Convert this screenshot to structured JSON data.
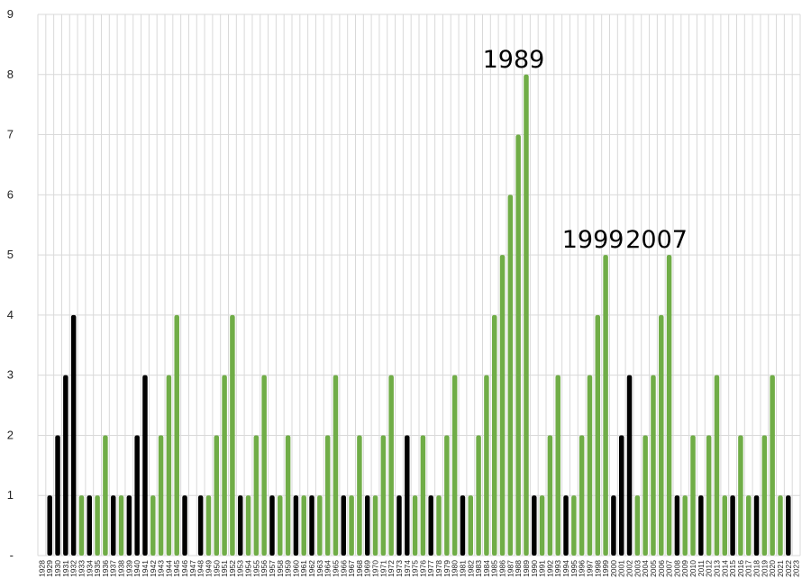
{
  "chart_data": {
    "type": "bar",
    "title": "",
    "xlabel": "",
    "ylabel": "",
    "ylim": [
      0,
      9
    ],
    "y_ticks": [
      "-",
      "1",
      "2",
      "3",
      "4",
      "5",
      "6",
      "7",
      "8",
      "9"
    ],
    "grid": true,
    "legend": "none",
    "colors": {
      "black": "#000000",
      "green": "#70AD47",
      "grid": "#d9d9d9"
    },
    "categories": [
      "1928",
      "1929",
      "1930",
      "1931",
      "1932",
      "1933",
      "1934",
      "1935",
      "1936",
      "1937",
      "1938",
      "1939",
      "1940",
      "1941",
      "1942",
      "1943",
      "1944",
      "1945",
      "1946",
      "1947",
      "1948",
      "1949",
      "1950",
      "1951",
      "1952",
      "1953",
      "1954",
      "1955",
      "1956",
      "1957",
      "1958",
      "1959",
      "1960",
      "1961",
      "1962",
      "1963",
      "1964",
      "1965",
      "1966",
      "1967",
      "1968",
      "1969",
      "1970",
      "1971",
      "1972",
      "1973",
      "1974",
      "1975",
      "1976",
      "1977",
      "1978",
      "1979",
      "1980",
      "1981",
      "1982",
      "1983",
      "1984",
      "1985",
      "1986",
      "1987",
      "1988",
      "1989",
      "1990",
      "1991",
      "1992",
      "1993",
      "1994",
      "1995",
      "1996",
      "1997",
      "1998",
      "1999",
      "2000",
      "2001",
      "2002",
      "2003",
      "2004",
      "2005",
      "2006",
      "2007",
      "2008",
      "2009",
      "2010",
      "2011",
      "2012",
      "2013",
      "2014",
      "2015",
      "2016",
      "2017",
      "2018",
      "2019",
      "2020",
      "2021",
      "2022",
      "2023"
    ],
    "values": [
      0,
      1,
      2,
      3,
      4,
      1,
      1,
      1,
      2,
      1,
      1,
      1,
      2,
      3,
      1,
      2,
      3,
      4,
      1,
      0,
      1,
      1,
      2,
      3,
      4,
      1,
      1,
      2,
      3,
      1,
      1,
      2,
      1,
      1,
      1,
      1,
      2,
      3,
      1,
      1,
      2,
      1,
      1,
      2,
      3,
      1,
      2,
      1,
      2,
      1,
      1,
      2,
      3,
      1,
      1,
      2,
      3,
      4,
      5,
      6,
      7,
      8,
      1,
      1,
      2,
      3,
      1,
      1,
      2,
      3,
      4,
      5,
      1,
      2,
      3,
      1,
      2,
      3,
      4,
      5,
      1,
      1,
      2,
      1,
      2,
      3,
      1,
      1,
      2,
      1,
      1,
      2,
      3,
      1,
      1,
      0
    ],
    "bar_colors": [
      "green",
      "black",
      "black",
      "black",
      "black",
      "green",
      "black",
      "green",
      "green",
      "black",
      "green",
      "black",
      "black",
      "black",
      "green",
      "green",
      "green",
      "green",
      "black",
      "green",
      "black",
      "green",
      "green",
      "green",
      "green",
      "black",
      "green",
      "green",
      "green",
      "black",
      "green",
      "green",
      "black",
      "green",
      "black",
      "green",
      "green",
      "green",
      "black",
      "green",
      "green",
      "black",
      "green",
      "green",
      "green",
      "black",
      "black",
      "green",
      "green",
      "black",
      "green",
      "green",
      "green",
      "black",
      "green",
      "green",
      "green",
      "green",
      "green",
      "green",
      "green",
      "green",
      "black",
      "green",
      "green",
      "green",
      "black",
      "green",
      "green",
      "green",
      "green",
      "green",
      "black",
      "black",
      "black",
      "green",
      "green",
      "green",
      "green",
      "green",
      "black",
      "green",
      "green",
      "black",
      "green",
      "green",
      "green",
      "black",
      "green",
      "green",
      "black",
      "green",
      "green",
      "green",
      "black",
      "green"
    ],
    "annotations": [
      {
        "text": "1989",
        "category": "1989"
      },
      {
        "text": "1999",
        "category": "1999"
      },
      {
        "text": "2007",
        "category": "2007"
      }
    ]
  }
}
